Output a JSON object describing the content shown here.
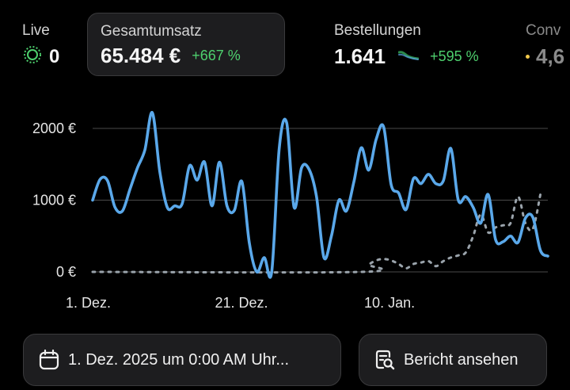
{
  "metrics": {
    "live": {
      "label": "Live",
      "value": "0"
    },
    "sales": {
      "label": "Gesamtumsatz",
      "value": "65.484 €",
      "change": "+667 %"
    },
    "orders": {
      "label": "Bestellungen",
      "value": "1.641",
      "change": "+595 %"
    },
    "conversion": {
      "label": "Conv",
      "value": "4,6"
    }
  },
  "colors": {
    "current_series": "#5aa8ea",
    "previous_series": "#9aa3ab",
    "positive_change": "#4ed06e",
    "grid": "#4a4a4a",
    "button_bg": "#1d1d1f"
  },
  "icons": {
    "live": "live-pulse-icon",
    "orders_trend": "trend-sparkline-icon",
    "conversion": "yellow-dot-icon",
    "date": "calendar-icon",
    "report": "report-search-icon"
  },
  "chart_data": {
    "type": "line",
    "y_ticks": [
      "2000 €",
      "1000 €",
      "0 €"
    ],
    "y_tick_values": [
      2000,
      1000,
      0
    ],
    "ylim": [
      0,
      2000
    ],
    "x_ticks": [
      "1. Dez.",
      "21. Dez.",
      "10. Jan."
    ],
    "x_tick_values": [
      0,
      20,
      40
    ],
    "grid": true,
    "series": [
      {
        "style": "solid",
        "color": "#5aa8ea",
        "points": [
          [
            0,
            1000
          ],
          [
            1,
            1290
          ],
          [
            2,
            1270
          ],
          [
            3,
            900
          ],
          [
            4,
            850
          ],
          [
            5,
            1150
          ],
          [
            6,
            1450
          ],
          [
            7,
            1700
          ],
          [
            8,
            2220
          ],
          [
            9,
            1400
          ],
          [
            10,
            900
          ],
          [
            11,
            920
          ],
          [
            12,
            950
          ],
          [
            13,
            1480
          ],
          [
            14,
            1280
          ],
          [
            15,
            1530
          ],
          [
            16,
            920
          ],
          [
            17,
            1530
          ],
          [
            18,
            920
          ],
          [
            19,
            860
          ],
          [
            20,
            1260
          ],
          [
            21,
            400
          ],
          [
            22,
            0
          ],
          [
            23,
            200
          ],
          [
            24,
            0
          ],
          [
            25,
            1720
          ],
          [
            26,
            2080
          ],
          [
            27,
            900
          ],
          [
            28,
            1450
          ],
          [
            29,
            1430
          ],
          [
            30,
            1050
          ],
          [
            31,
            200
          ],
          [
            32,
            500
          ],
          [
            33,
            1000
          ],
          [
            34,
            850
          ],
          [
            35,
            1250
          ],
          [
            36,
            1730
          ],
          [
            37,
            1420
          ],
          [
            38,
            1850
          ],
          [
            39,
            2020
          ],
          [
            40,
            1220
          ],
          [
            41,
            1100
          ],
          [
            42,
            870
          ],
          [
            43,
            1300
          ],
          [
            44,
            1230
          ],
          [
            45,
            1360
          ],
          [
            46,
            1230
          ],
          [
            47,
            1270
          ],
          [
            48,
            1720
          ],
          [
            49,
            1000
          ],
          [
            50,
            1050
          ],
          [
            51,
            900
          ],
          [
            52,
            680
          ],
          [
            53,
            1080
          ],
          [
            54,
            450
          ],
          [
            55,
            420
          ],
          [
            56,
            500
          ],
          [
            57,
            410
          ],
          [
            58,
            750
          ],
          [
            59,
            760
          ],
          [
            60,
            300
          ],
          [
            61,
            220
          ]
        ]
      },
      {
        "style": "dashed",
        "color": "#9aa3ab",
        "points": [
          [
            0,
            0
          ],
          [
            36,
            0
          ],
          [
            37,
            100
          ],
          [
            38,
            160
          ],
          [
            39,
            180
          ],
          [
            40,
            160
          ],
          [
            41,
            110
          ],
          [
            42,
            50
          ],
          [
            43,
            110
          ],
          [
            44,
            130
          ],
          [
            45,
            150
          ],
          [
            46,
            80
          ],
          [
            47,
            150
          ],
          [
            48,
            200
          ],
          [
            49,
            230
          ],
          [
            50,
            270
          ],
          [
            51,
            500
          ],
          [
            52,
            800
          ],
          [
            53,
            550
          ],
          [
            54,
            620
          ],
          [
            55,
            650
          ],
          [
            56,
            680
          ],
          [
            57,
            1050
          ],
          [
            58,
            680
          ],
          [
            59,
            600
          ],
          [
            60,
            1080
          ]
        ]
      }
    ]
  },
  "buttons": {
    "date_range": "1. Dez. 2025 um 0:00 AM Uhr...",
    "report": "Bericht ansehen"
  }
}
